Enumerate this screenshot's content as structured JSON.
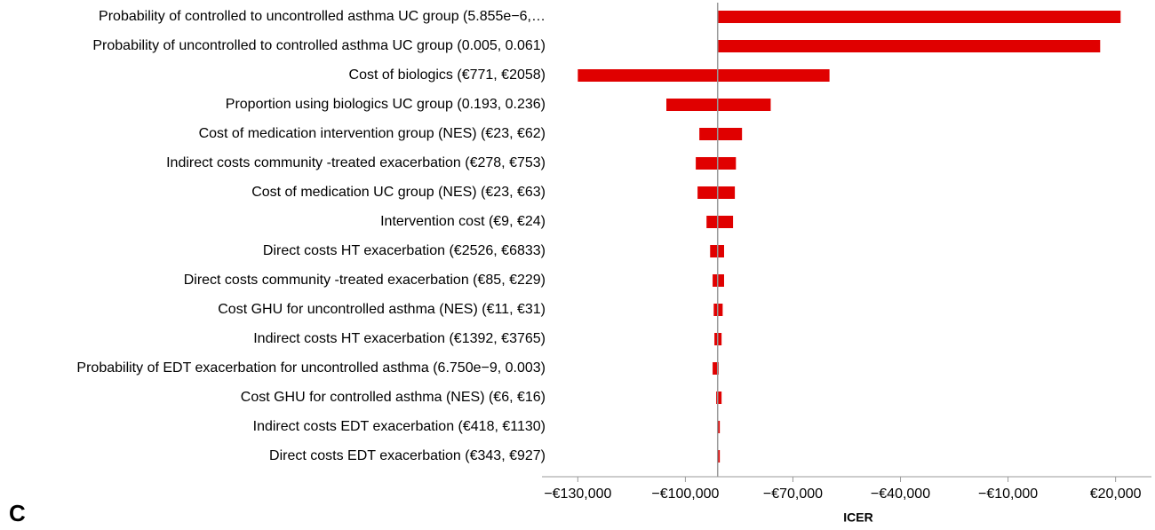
{
  "chart_data": {
    "type": "tornado",
    "panel_label": "C",
    "xlabel": "ICER",
    "categories": [
      "Probability of controlled to uncontrolled asthma UC group (5.855e−6,…",
      "Probability of uncontrolled to controlled asthma UC group (0.005, 0.061)",
      "Cost of biologics (€771, €2058)",
      "Proportion using biologics UC group (0.193, 0.236)",
      "Cost of medication intervention group (NES) (€23, €62)",
      "Indirect costs community -treated exacerbation (€278, €753)",
      "Cost of medication UC group (NES) (€23, €63)",
      "Intervention cost (€9, €24)",
      "Direct costs HT exacerbation (€2526, €6833)",
      "Direct costs community -treated exacerbation (€85, €229)",
      "Cost GHU for uncontrolled asthma (NES) (€11, €31)",
      "Indirect costs HT exacerbation (€1392, €3765)",
      "Probability of EDT exacerbation for uncontrolled asthma (6.750e−9, 0.003)",
      "Cost GHU for controlled asthma (NES) (€6, €16)",
      "Indirect costs EDT exacerbation (€418, €1130)",
      "Direct costs EDT exacerbation (€343, €927)"
    ],
    "low": [
      -91000,
      -91000,
      -130000,
      -105300,
      -96100,
      -97100,
      -96600,
      -94100,
      -93100,
      -92400,
      -92100,
      -91900,
      -92400,
      -91400,
      -91100,
      -91100
    ],
    "high": [
      21400,
      15700,
      -59800,
      -76200,
      -84200,
      -85900,
      -86200,
      -86700,
      -89200,
      -89200,
      -89600,
      -89900,
      -90700,
      -89900,
      -90400,
      -90400
    ],
    "base": -91000,
    "color": "#e00000",
    "xlim": [
      -140000,
      30000
    ],
    "xticks": [
      {
        "value": -130000,
        "label": "−€130,000"
      },
      {
        "value": -100000,
        "label": "−€100,000"
      },
      {
        "value": -70000,
        "label": "−€70,000"
      },
      {
        "value": -40000,
        "label": "−€40,000"
      },
      {
        "value": -10000,
        "label": "−€10,000"
      },
      {
        "value": 20000,
        "label": "€20,000"
      }
    ]
  }
}
